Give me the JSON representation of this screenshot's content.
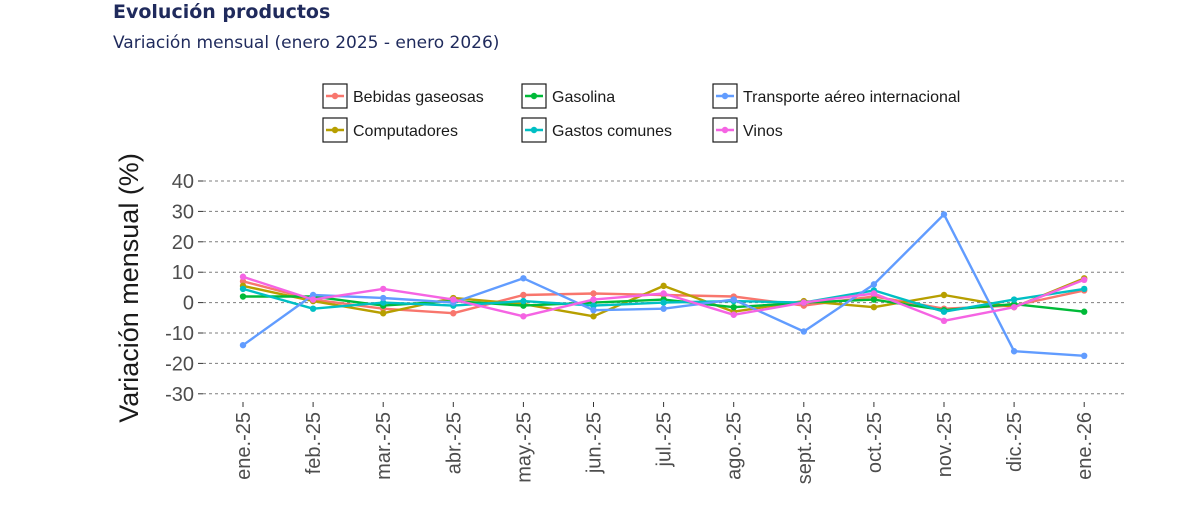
{
  "header": {
    "title": "Evolución productos",
    "subtitle": "Variación mensual (enero 2025 - enero 2026)"
  },
  "chart_data": {
    "type": "line",
    "title": "Evolución productos",
    "subtitle": "Variación mensual (enero 2025 - enero 2026)",
    "xlabel": "",
    "ylabel": "Variación mensual (%)",
    "ylim": [
      -33,
      43
    ],
    "yticks": [
      40,
      30,
      20,
      10,
      0,
      -10,
      -20,
      -30
    ],
    "ytick_labels": [
      "40",
      "30",
      "20",
      "10",
      "0",
      "-10",
      "-20",
      "-30"
    ],
    "grid": "horizontal dashed",
    "legend_position": "top",
    "categories": [
      "ene.-25",
      "feb.-25",
      "mar.-25",
      "abr.-25",
      "may.-25",
      "jun.-25",
      "jul.-25",
      "ago.-25",
      "sept.-25",
      "oct.-25",
      "nov.-25",
      "dic.-25",
      "ene.-26"
    ],
    "series": [
      {
        "name": "Bebidas gaseosas",
        "color": "#f8766d",
        "values": [
          7,
          1,
          -2,
          -3.5,
          2.5,
          3,
          2.5,
          2,
          -1,
          2,
          -2,
          -1,
          4
        ]
      },
      {
        "name": "Computadores",
        "color": "#b79f00",
        "values": [
          5.5,
          0.5,
          -3.5,
          1.5,
          -0.5,
          -4.5,
          5.5,
          -3,
          0.5,
          -1.5,
          2.5,
          -1.5,
          8
        ]
      },
      {
        "name": "Gasolina",
        "color": "#00ba38",
        "values": [
          2,
          2,
          -1,
          0.5,
          -1,
          0,
          1,
          -1.5,
          0,
          1,
          -2.5,
          -0.5,
          -3
        ]
      },
      {
        "name": "Gastos comunes",
        "color": "#00bfc4",
        "values": [
          4.5,
          -2,
          0,
          -1,
          0.5,
          -1,
          0,
          0.5,
          0,
          4,
          -3,
          1,
          4.5
        ]
      },
      {
        "name": "Transporte aéreo internacional",
        "color": "#619cff",
        "values": [
          -14,
          2.5,
          1.5,
          0,
          8,
          -2.5,
          -2,
          1,
          -9.5,
          6,
          29,
          -16,
          -17.5
        ]
      },
      {
        "name": "Vinos",
        "color": "#f564e3",
        "values": [
          8.5,
          1,
          4.5,
          1,
          -4.5,
          1,
          3,
          -4,
          0,
          3,
          -6,
          -1.5,
          7.5
        ]
      }
    ],
    "legend_rows": [
      [
        "Bebidas gaseosas",
        "Gasolina",
        "Transporte aéreo internacional"
      ],
      [
        "Computadores",
        "Gastos comunes",
        "Vinos"
      ]
    ]
  }
}
